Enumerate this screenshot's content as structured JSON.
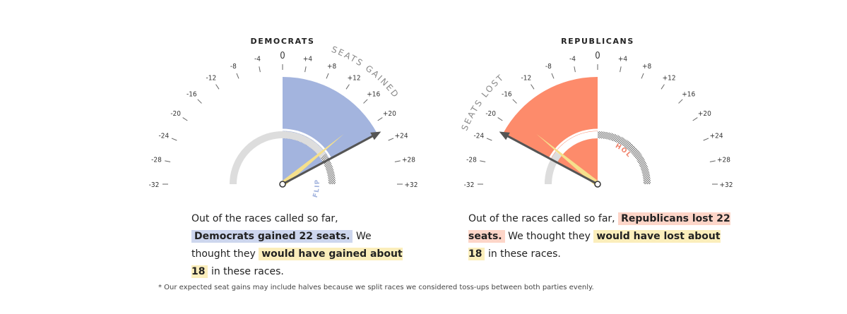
{
  "chart_data": [
    {
      "type": "gauge",
      "title": "DEMOCRATS",
      "tick_labels": [
        "-32",
        "-28",
        "-24",
        "-20",
        "-16",
        "-12",
        "-8",
        "-4",
        "0",
        "+4",
        "+8",
        "+12",
        "+16",
        "+20",
        "+24",
        "+28",
        "+32"
      ],
      "tick_values": [
        -32,
        -28,
        -24,
        -20,
        -16,
        -12,
        -8,
        -4,
        0,
        4,
        8,
        12,
        16,
        20,
        24,
        28,
        32
      ],
      "range": [
        -32,
        32
      ],
      "actual": 22,
      "expected": 18,
      "arc_label": "SEATS GAINED",
      "inner_label": "FLIP",
      "color": "#a3b4de",
      "inner_color": "#a3b4de",
      "hatched_side": "right"
    },
    {
      "type": "gauge",
      "title": "REPUBLICANS",
      "tick_labels": [
        "-32",
        "-28",
        "-24",
        "-20",
        "-16",
        "-12",
        "-8",
        "-4",
        "0",
        "+4",
        "+8",
        "+12",
        "+16",
        "+20",
        "+24",
        "+28",
        "+32"
      ],
      "tick_values": [
        -32,
        -28,
        -24,
        -20,
        -16,
        -12,
        -8,
        -4,
        0,
        4,
        8,
        12,
        16,
        20,
        24,
        28,
        32
      ],
      "range": [
        -32,
        32
      ],
      "actual": -22,
      "expected": -18,
      "arc_label": "SEATS LOST",
      "inner_label": "HOLD",
      "color": "#fd8b6b",
      "inner_color": "#f0826b",
      "hatched_side": "right"
    }
  ],
  "summaries": {
    "dem": {
      "pre": "Out of the races called so far,",
      "actual_text": "Democrats gained 22 seats.",
      "mid": "We thought they",
      "expected_text": "would have gained about 18",
      "post": "in these races."
    },
    "rep": {
      "pre": "Out of the races called so far,",
      "actual_text": "Republicans lost 22 seats.",
      "mid": "We thought they",
      "expected_text": "would have lost about 18",
      "post": "in these races."
    }
  },
  "footnote": "* Our expected seat gains may include halves because we split races we considered toss-ups between both parties evenly.",
  "colors": {
    "needle_actual": "#555555",
    "needle_expected": "#f5e08c",
    "track": "#dddddd"
  }
}
